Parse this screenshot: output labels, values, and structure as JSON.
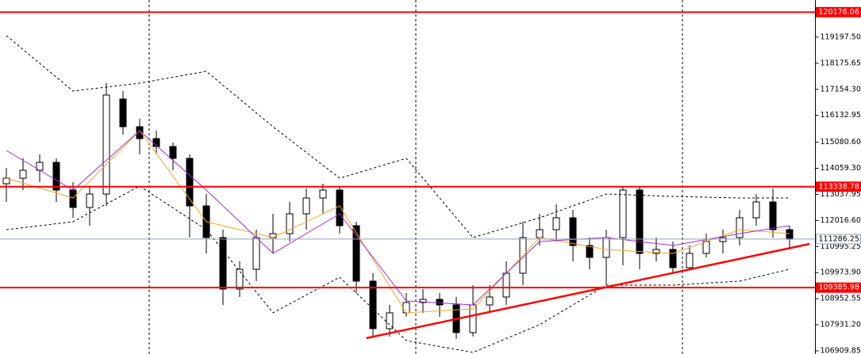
{
  "chart_data": {
    "type": "candlestick",
    "ylim": [
      106786,
      120652
    ],
    "yticks": [
      {
        "value": 119197.5,
        "label": "119197.50"
      },
      {
        "value": 118175.65,
        "label": "118175.65"
      },
      {
        "value": 117154.3,
        "label": "117154.30"
      },
      {
        "value": 116132.95,
        "label": "116132.95"
      },
      {
        "value": 115080.6,
        "label": "115080.60"
      },
      {
        "value": 114059.3,
        "label": "114059.30"
      },
      {
        "value": 113037.95,
        "label": "113037.95"
      },
      {
        "value": 112016.6,
        "label": "112016.60"
      },
      {
        "value": 110995.25,
        "label": "110995.25"
      },
      {
        "value": 109973.9,
        "label": "109973.90"
      },
      {
        "value": 108952.55,
        "label": "108952.55"
      },
      {
        "value": 107931.2,
        "label": "107931.20"
      },
      {
        "value": 106909.85,
        "label": "106909.85"
      }
    ],
    "up_color": "#ffffff",
    "down_color": "#000000",
    "open": [
      113455,
      113672,
      113983,
      114293,
      113207,
      112525,
      113052,
      116774,
      115689,
      115223,
      114913,
      114448,
      112587,
      111346,
      109330,
      110105,
      111346,
      111501,
      112277,
      112897,
      113207,
      111811,
      109640,
      107779,
      108399,
      108802,
      108926,
      108709,
      107624,
      108709,
      109019,
      109950,
      111346,
      111656,
      112121,
      111036,
      110570,
      111346,
      113207,
      110726,
      110881,
      110167,
      110726,
      111191,
      111346,
      112121,
      112742,
      111656
    ],
    "high": [
      114076,
      114448,
      114603,
      114448,
      113517,
      113362,
      117395,
      117085,
      115999,
      115534,
      115068,
      114603,
      113052,
      111656,
      110415,
      111656,
      112277,
      112742,
      113269,
      113455,
      113362,
      111966,
      109950,
      108709,
      109175,
      109330,
      109175,
      109019,
      109485,
      109485,
      110415,
      111966,
      112277,
      112649,
      112432,
      111346,
      111656,
      113362,
      113362,
      111346,
      111191,
      111036,
      111501,
      111656,
      112432,
      113052,
      113269,
      111811
    ],
    "low": [
      112742,
      113207,
      113517,
      112742,
      112121,
      111811,
      112587,
      115379,
      114603,
      114603,
      113983,
      111346,
      110726,
      108709,
      109019,
      109640,
      110726,
      111191,
      111656,
      112277,
      111501,
      109175,
      107468,
      107468,
      108244,
      108399,
      108244,
      107375,
      107468,
      108399,
      108709,
      109485,
      111036,
      111191,
      110415,
      110105,
      109485,
      110260,
      110105,
      110415,
      109950,
      110105,
      110570,
      110726,
      111036,
      111811,
      111346,
      110881
    ],
    "close": [
      113672,
      113983,
      114293,
      113207,
      112525,
      113052,
      116930,
      115689,
      115223,
      114913,
      114448,
      112587,
      111346,
      109330,
      110105,
      111346,
      111501,
      112277,
      112897,
      113207,
      111811,
      109640,
      107779,
      108399,
      108802,
      108926,
      108709,
      107624,
      108709,
      109019,
      109950,
      111346,
      111656,
      112121,
      111036,
      110570,
      111346,
      113207,
      110726,
      110881,
      110167,
      110726,
      111191,
      111346,
      112121,
      112742,
      111656,
      111284
    ],
    "lines": [
      {
        "x": [
          0,
          4,
          8,
          12,
          16,
          20,
          24,
          28,
          32,
          36,
          40,
          44,
          47
        ],
        "values": [
          119256,
          117085,
          117395,
          117860,
          115689,
          113672,
          114448,
          111346,
          112121,
          113052,
          112959,
          112897,
          112897
        ],
        "color": "#000000",
        "dash": true
      },
      {
        "x": [
          0,
          4,
          8,
          12,
          16,
          20,
          24,
          28,
          32,
          36,
          40,
          44,
          47
        ],
        "values": [
          111656,
          111966,
          113362,
          111656,
          108399,
          109795,
          107313,
          106848,
          107934,
          109485,
          109485,
          109640,
          110105
        ],
        "color": "#000000",
        "dash": true
      },
      {
        "x": [
          0,
          4,
          8,
          12,
          16,
          20,
          24,
          28,
          32,
          36,
          40,
          44,
          47
        ],
        "values": [
          113672,
          112897,
          115534,
          111966,
          111346,
          112587,
          108399,
          108554,
          111346,
          110881,
          110726,
          111656,
          111501
        ],
        "color": "#f5a623",
        "dash": false
      },
      {
        "x": [
          0,
          4,
          8,
          12,
          16,
          20,
          24,
          28,
          32,
          36,
          40,
          44,
          47
        ],
        "values": [
          114758,
          113207,
          115534,
          113207,
          110726,
          112277,
          108864,
          108709,
          111191,
          111346,
          111036,
          111501,
          111811
        ],
        "color": "#9b30d0",
        "dash": false
      }
    ],
    "trendline": {
      "x": [
        21.6,
        48.2
      ],
      "values": [
        107406,
        111098
      ],
      "color": "#ff0000"
    },
    "levels": [
      {
        "value": 120176.06,
        "color": "#ff0000"
      },
      {
        "value": 113338.78,
        "color": "#ff0000"
      },
      {
        "value": 109385.98,
        "color": "#ff0000"
      },
      {
        "value": 111286.25,
        "color": "#8fa3b8"
      }
    ]
  }
}
